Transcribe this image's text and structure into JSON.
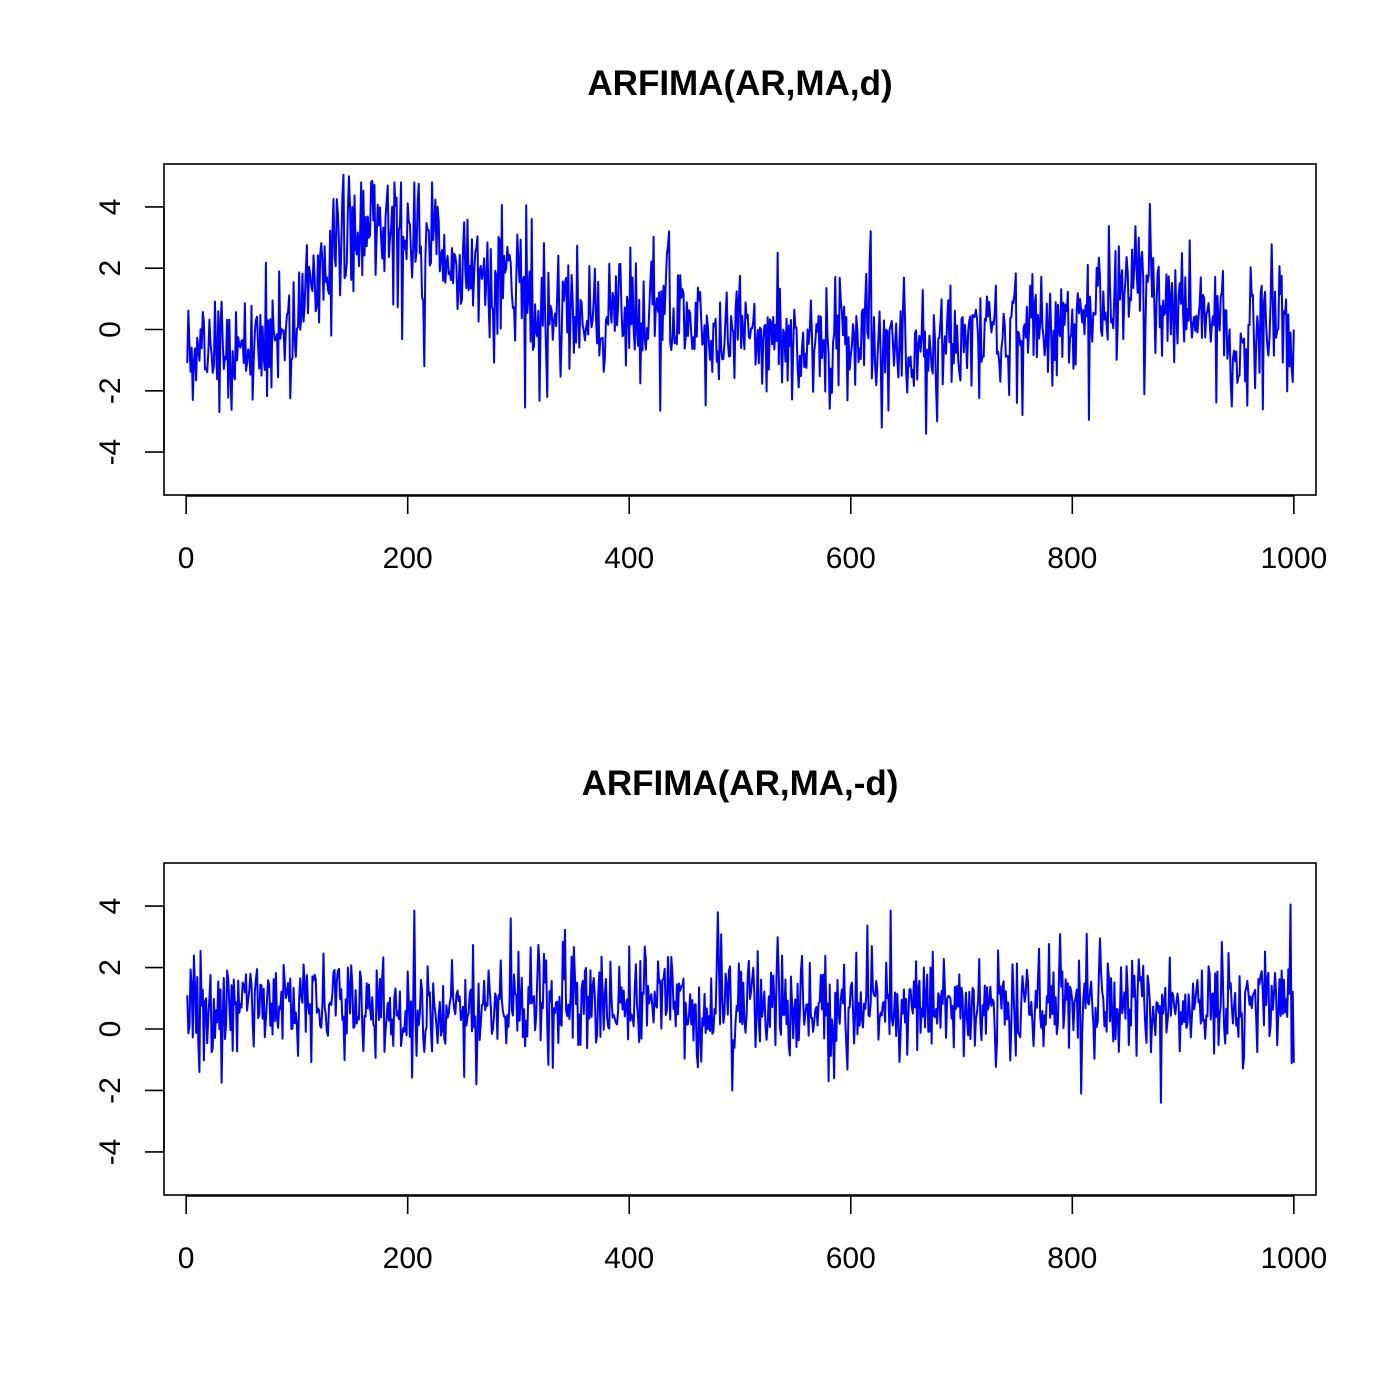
{
  "chart_data": [
    {
      "type": "line",
      "title": "ARFIMA(AR,MA,d)",
      "xlabel": "",
      "ylabel": "",
      "xlim": [
        -20,
        1020
      ],
      "ylim": [
        -5.4,
        5.4
      ],
      "xticks": [
        "0",
        "200",
        "400",
        "600",
        "800",
        "1000"
      ],
      "yticks": [
        "-4",
        "-2",
        "0",
        "2",
        "4"
      ],
      "grid": false,
      "line_color": "#0000ff",
      "n": 1000,
      "anchors_x": [
        1,
        5,
        10,
        20,
        30,
        40,
        50,
        60,
        70,
        80,
        90,
        100,
        110,
        120,
        130,
        140,
        150,
        160,
        170,
        180,
        190,
        200,
        210,
        220,
        230,
        240,
        250,
        260,
        270,
        280,
        290,
        300,
        310,
        320,
        330,
        340,
        350,
        360,
        380,
        400,
        420,
        430,
        440,
        460,
        480,
        500,
        520,
        540,
        560,
        580,
        600,
        620,
        640,
        660,
        680,
        700,
        720,
        740,
        760,
        780,
        800,
        820,
        840,
        860,
        870,
        880,
        890,
        900,
        920,
        940,
        960,
        980,
        1000
      ],
      "anchors_y": [
        -0.6,
        -0.8,
        -0.3,
        -0.5,
        -0.7,
        -0.5,
        -0.4,
        -0.3,
        -0.6,
        -0.4,
        0.2,
        0.3,
        1.2,
        1.5,
        2.0,
        2.4,
        3.1,
        3.3,
        3.5,
        3.6,
        3.3,
        3.0,
        2.6,
        2.5,
        2.4,
        2.2,
        2.0,
        1.7,
        1.6,
        1.5,
        1.8,
        1.3,
        0.9,
        0.6,
        0.4,
        0.6,
        0.8,
        0.4,
        0.1,
        0.3,
        0.9,
        0.8,
        0.3,
        0.2,
        -0.2,
        0.1,
        0.0,
        -0.3,
        -0.5,
        -0.1,
        0.0,
        -0.2,
        -0.6,
        -0.9,
        -0.5,
        -0.2,
        0.2,
        -0.3,
        0.1,
        -0.1,
        0.4,
        0.9,
        1.0,
        1.1,
        1.4,
        0.7,
        0.5,
        0.9,
        0.5,
        -0.1,
        -0.2,
        -0.1,
        0.0
      ],
      "noise_sd": 1.0,
      "extremes": [
        {
          "x": 6,
          "y": -2.3
        },
        {
          "x": 142,
          "y": 5.05
        },
        {
          "x": 147,
          "y": 5.0
        },
        {
          "x": 168,
          "y": 4.85
        },
        {
          "x": 182,
          "y": 4.7
        },
        {
          "x": 210,
          "y": 4.75
        },
        {
          "x": 215,
          "y": -1.2
        },
        {
          "x": 307,
          "y": 4.05
        },
        {
          "x": 326,
          "y": -2.2
        },
        {
          "x": 428,
          "y": -2.65
        },
        {
          "x": 436,
          "y": 3.2
        },
        {
          "x": 628,
          "y": -3.2
        },
        {
          "x": 668,
          "y": -3.4
        },
        {
          "x": 815,
          "y": -2.95
        },
        {
          "x": 870,
          "y": 4.1
        },
        {
          "x": 972,
          "y": -2.6
        },
        {
          "x": 1000,
          "y": 0.0
        }
      ]
    },
    {
      "type": "line",
      "title": "ARFIMA(AR,MA,-d)",
      "xlabel": "",
      "ylabel": "",
      "xlim": [
        -20,
        1020
      ],
      "ylim": [
        -5.4,
        5.4
      ],
      "xticks": [
        "0",
        "200",
        "400",
        "600",
        "800",
        "1000"
      ],
      "yticks": [
        "-4",
        "-2",
        "0",
        "2",
        "4"
      ],
      "grid": false,
      "line_color": "#0000ff",
      "n": 1000,
      "anchors_x": [
        1,
        100,
        200,
        300,
        400,
        500,
        600,
        700,
        800,
        900,
        1000
      ],
      "anchors_y": [
        0.75,
        0.8,
        0.75,
        0.8,
        0.75,
        0.75,
        0.8,
        0.75,
        0.75,
        0.8,
        0.75
      ],
      "noise_sd": 0.85,
      "extremes": [
        {
          "x": 1,
          "y": 1.1
        },
        {
          "x": 12,
          "y": -1.4
        },
        {
          "x": 32,
          "y": -1.75
        },
        {
          "x": 206,
          "y": 3.85
        },
        {
          "x": 262,
          "y": -1.8
        },
        {
          "x": 293,
          "y": 3.6
        },
        {
          "x": 480,
          "y": 3.8
        },
        {
          "x": 493,
          "y": -2.0
        },
        {
          "x": 580,
          "y": -1.7
        },
        {
          "x": 636,
          "y": 3.85
        },
        {
          "x": 808,
          "y": -2.1
        },
        {
          "x": 880,
          "y": -2.4
        },
        {
          "x": 997,
          "y": 4.05
        },
        {
          "x": 1000,
          "y": -1.1
        }
      ]
    }
  ]
}
